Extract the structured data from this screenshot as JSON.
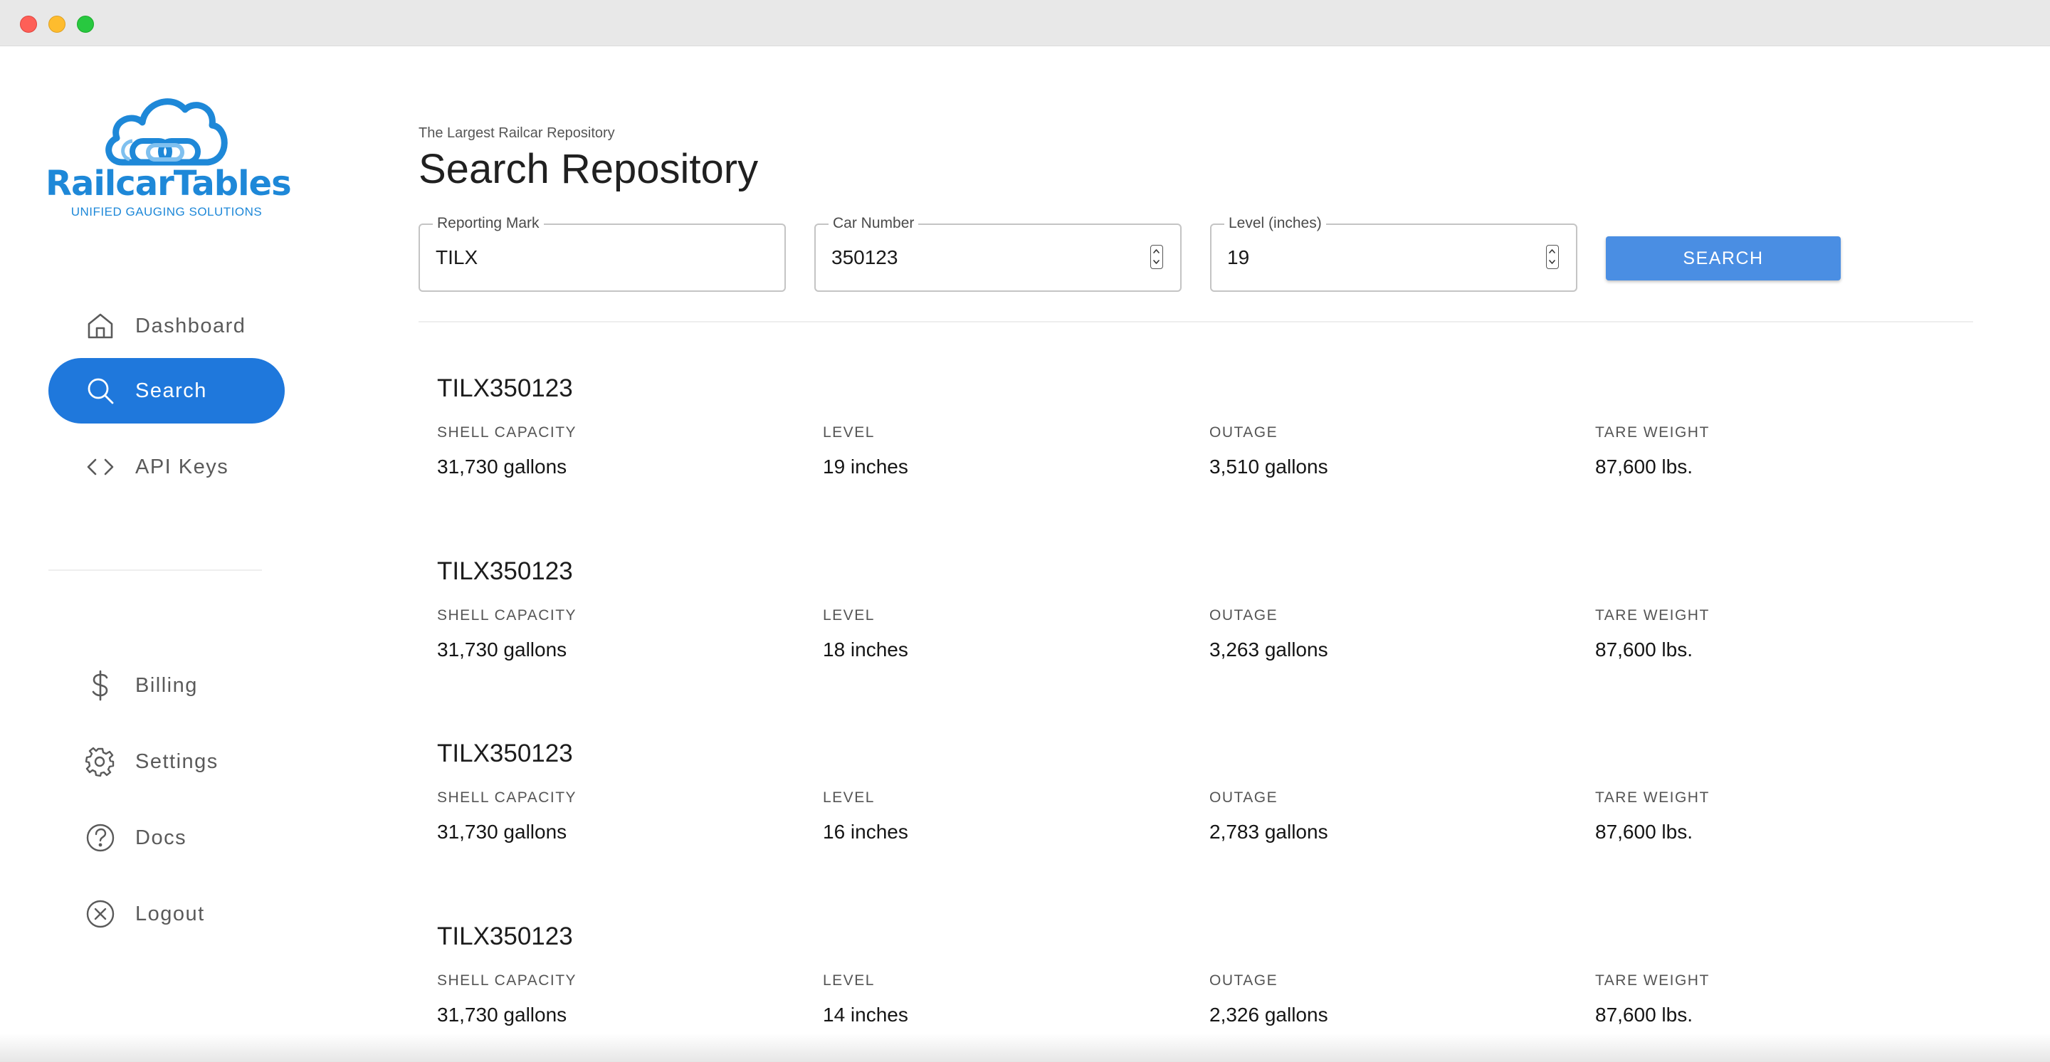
{
  "brand": {
    "name": "RailcarTables",
    "tagline": "UNIFIED GAUGING SOLUTIONS",
    "color": "#1e88d8"
  },
  "sidebar": {
    "primary": [
      {
        "label": "Dashboard",
        "icon": "home-icon",
        "active": false
      },
      {
        "label": "Search",
        "icon": "search-icon",
        "active": true
      },
      {
        "label": "API Keys",
        "icon": "code-icon",
        "active": false
      }
    ],
    "secondary": [
      {
        "label": "Billing",
        "icon": "dollar-icon"
      },
      {
        "label": "Settings",
        "icon": "gear-icon"
      },
      {
        "label": "Docs",
        "icon": "help-circle-icon"
      },
      {
        "label": "Logout",
        "icon": "logout-x-circle-icon"
      }
    ],
    "active_color": "#1f78dc"
  },
  "header": {
    "subtitle": "The Largest Railcar Repository",
    "title": "Search Repository"
  },
  "search_form": {
    "reporting_mark": {
      "label": "Reporting Mark",
      "value": "TILX"
    },
    "car_number": {
      "label": "Car Number",
      "value": "350123"
    },
    "level": {
      "label": "Level (inches)",
      "value": "19"
    },
    "search_button": "SEARCH",
    "button_color": "#4a8ee3"
  },
  "results_columns": [
    "SHELL CAPACITY",
    "LEVEL",
    "OUTAGE",
    "TARE WEIGHT"
  ],
  "results": [
    {
      "car": "TILX350123",
      "shell_capacity": "31,730 gallons",
      "level": "19 inches",
      "outage": "3,510 gallons",
      "tare_weight": "87,600 lbs."
    },
    {
      "car": "TILX350123",
      "shell_capacity": "31,730 gallons",
      "level": "18 inches",
      "outage": "3,263 gallons",
      "tare_weight": "87,600 lbs."
    },
    {
      "car": "TILX350123",
      "shell_capacity": "31,730 gallons",
      "level": "16 inches",
      "outage": "2,783 gallons",
      "tare_weight": "87,600 lbs."
    },
    {
      "car": "TILX350123",
      "shell_capacity": "31,730 gallons",
      "level": "14 inches",
      "outage": "2,326 gallons",
      "tare_weight": "87,600 lbs."
    }
  ]
}
